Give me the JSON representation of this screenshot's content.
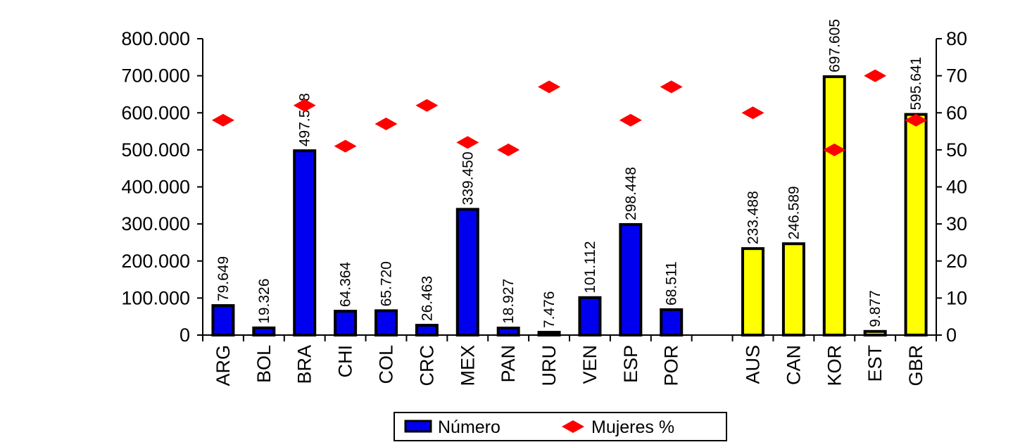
{
  "chart_data": {
    "type": "bar",
    "title": "",
    "xlabel": "",
    "ylabel": "",
    "y2label": "",
    "ylim": [
      0,
      800000
    ],
    "y2lim": [
      0,
      80
    ],
    "y_ticks": [
      "0",
      "100.000",
      "200.000",
      "300.000",
      "400.000",
      "500.000",
      "600.000",
      "700.000",
      "800.000"
    ],
    "y2_ticks": [
      "0",
      "10",
      "20",
      "30",
      "40",
      "50",
      "60",
      "70",
      "80"
    ],
    "grid": false,
    "legend_position": "bottom",
    "categories": [
      "ARG",
      "BOL",
      "BRA",
      "CHI",
      "COL",
      "CRC",
      "MEX",
      "PAN",
      "URU",
      "VEN",
      "ESP",
      "POR",
      "",
      "AUS",
      "CAN",
      "KOR",
      "EST",
      "GBR"
    ],
    "series": [
      {
        "name": "Número",
        "type": "bar",
        "axis": "left",
        "color": "#0000ee",
        "values": [
          79649,
          19326,
          497598,
          64364,
          65720,
          26463,
          339450,
          18927,
          7476,
          101112,
          298448,
          68511,
          null,
          233488,
          246589,
          697605,
          9877,
          595641
        ],
        "labels": [
          "79.649",
          "19.326",
          "497.598",
          "64.364",
          "65.720",
          "26.463",
          "339.450",
          "18.927",
          "7.476",
          "101.112",
          "298.448",
          "68.511",
          "",
          "233.488",
          "246.589",
          "697.605",
          "9.877",
          "595.641"
        ],
        "point_colors": [
          "#0000ee",
          "#0000ee",
          "#0000ee",
          "#0000ee",
          "#0000ee",
          "#0000ee",
          "#0000ee",
          "#0000ee",
          "#0000ee",
          "#0000ee",
          "#0000ee",
          "#0000ee",
          "",
          "#ffff00",
          "#ffff00",
          "#ffff00",
          "#ffff00",
          "#ffff00"
        ]
      },
      {
        "name": "Mujeres %",
        "type": "scatter",
        "axis": "right",
        "color": "#ff0000",
        "marker": "diamond",
        "values": [
          58,
          null,
          62,
          51,
          57,
          62,
          52,
          50,
          67,
          null,
          58,
          67,
          null,
          60,
          null,
          50,
          70,
          58
        ]
      }
    ]
  }
}
